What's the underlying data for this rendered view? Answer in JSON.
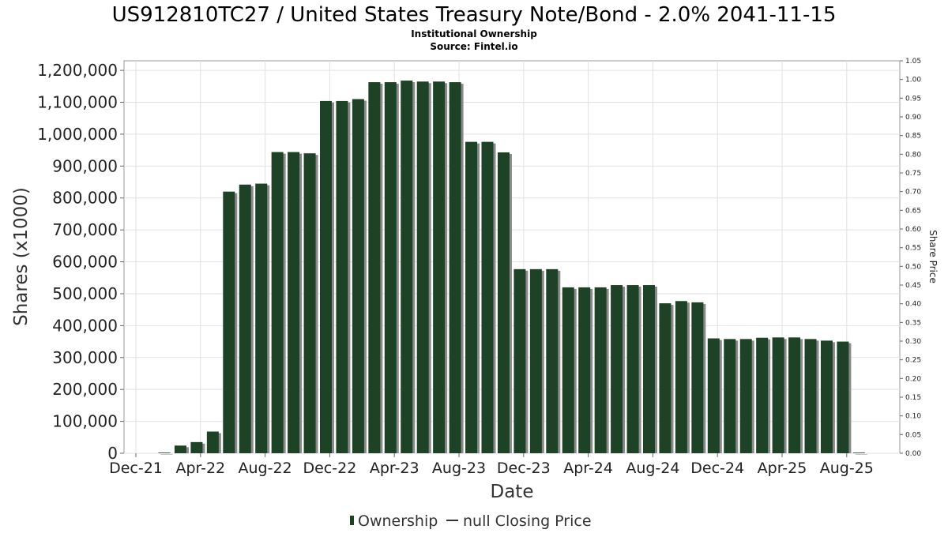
{
  "chart_data": {
    "type": "bar",
    "title": "US912810TC27 / United States Treasury Note/Bond - 2.0% 2041-11-15",
    "subtitle_lines": [
      "Institutional Ownership",
      "Source: Fintel.io"
    ],
    "xlabel": "Date",
    "ylabel": "Shares (x1000)",
    "ylabel_right": "Share Price",
    "ylim": [
      0,
      1230000
    ],
    "ylim_right": [
      0,
      1.05
    ],
    "grid": true,
    "legend_position": "bottom-center",
    "x_tick_labels": [
      "Dec-21",
      "Apr-22",
      "Aug-22",
      "Dec-22",
      "Apr-23",
      "Aug-23",
      "Dec-23",
      "Apr-24",
      "Aug-24",
      "Dec-24",
      "Apr-25",
      "Aug-25"
    ],
    "y_tick_labels": [
      "0",
      "100,000",
      "200,000",
      "300,000",
      "400,000",
      "500,000",
      "600,000",
      "700,000",
      "800,000",
      "900,000",
      "1,000,000",
      "1,100,000",
      "1,200,000"
    ],
    "y_tick_values": [
      0,
      100000,
      200000,
      300000,
      400000,
      500000,
      600000,
      700000,
      800000,
      900000,
      1000000,
      1100000,
      1200000
    ],
    "y_right_tick_labels": [
      "0.00",
      "0.05",
      "0.10",
      "0.15",
      "0.20",
      "0.25",
      "0.30",
      "0.35",
      "0.40",
      "0.45",
      "0.50",
      "0.55",
      "0.60",
      "0.65",
      "0.70",
      "0.75",
      "0.80",
      "0.85",
      "0.90",
      "0.95",
      "1.00",
      "1.05"
    ],
    "y_right_tick_values": [
      0,
      0.05,
      0.1,
      0.15,
      0.2,
      0.25,
      0.3,
      0.35,
      0.4,
      0.45,
      0.5,
      0.55,
      0.6,
      0.65,
      0.7,
      0.75,
      0.8,
      0.85,
      0.9,
      0.95,
      1.0,
      1.05
    ],
    "series": [
      {
        "name": "Ownership",
        "color": "#1e4226",
        "shadow_color": "#8a8a8a",
        "values": [
          2000,
          24000,
          35000,
          68000,
          820000,
          842000,
          845000,
          944000,
          944000,
          940000,
          1104000,
          1104000,
          1110000,
          1163000,
          1163000,
          1168000,
          1165000,
          1165000,
          1163000,
          976000,
          976000,
          943000,
          577000,
          577000,
          577000,
          520000,
          520000,
          520000,
          527000,
          527000,
          527000,
          470000,
          477000,
          473000,
          360000,
          358000,
          358000,
          362000,
          363000,
          363000,
          358000,
          353000,
          350000,
          2000
        ]
      },
      {
        "name": "null Closing Price",
        "color": "#333333",
        "values": []
      }
    ],
    "legend": [
      {
        "label": "Ownership",
        "marker": "bar",
        "color": "#1e4226"
      },
      {
        "label": "null Closing Price",
        "marker": "line",
        "color": "#333333"
      }
    ]
  }
}
